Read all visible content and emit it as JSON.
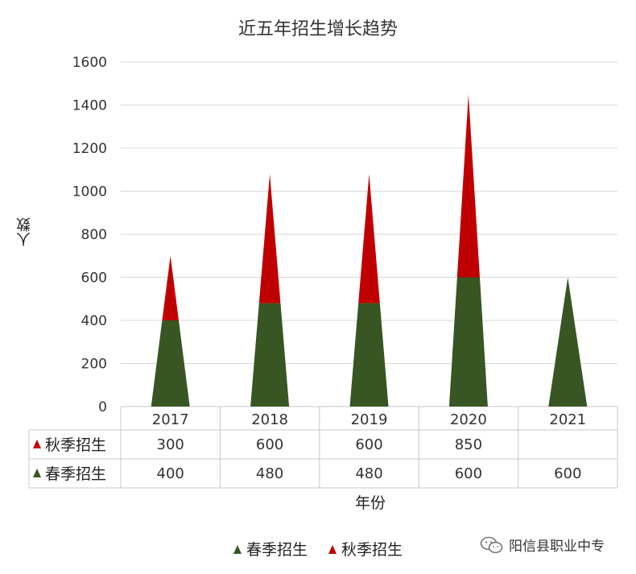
{
  "chart_data": {
    "type": "bar",
    "title": "近五年招生增长趋势",
    "xlabel": "年份",
    "ylabel": "人数",
    "categories": [
      "2017",
      "2018",
      "2019",
      "2020",
      "2021"
    ],
    "stacked": true,
    "ylim": [
      0,
      1600
    ],
    "yticks": [
      "0",
      "200",
      "400",
      "600",
      "800",
      "1000",
      "1200",
      "1400",
      "1600"
    ],
    "grid": true,
    "series": [
      {
        "name": "春季招生",
        "values": [
          400,
          480,
          480,
          600,
          600
        ],
        "color": "#375623",
        "table_values": [
          "400",
          "480",
          "480",
          "600",
          "600"
        ]
      },
      {
        "name": "秋季招生",
        "values": [
          300,
          600,
          600,
          850,
          null
        ],
        "color": "#c00000",
        "table_values": [
          "300",
          "600",
          "600",
          "850",
          ""
        ]
      }
    ],
    "legend_position": "bottom",
    "data_table": true
  },
  "watermark": {
    "text": "阳信县职业中专",
    "icon": "wechat-icon"
  }
}
